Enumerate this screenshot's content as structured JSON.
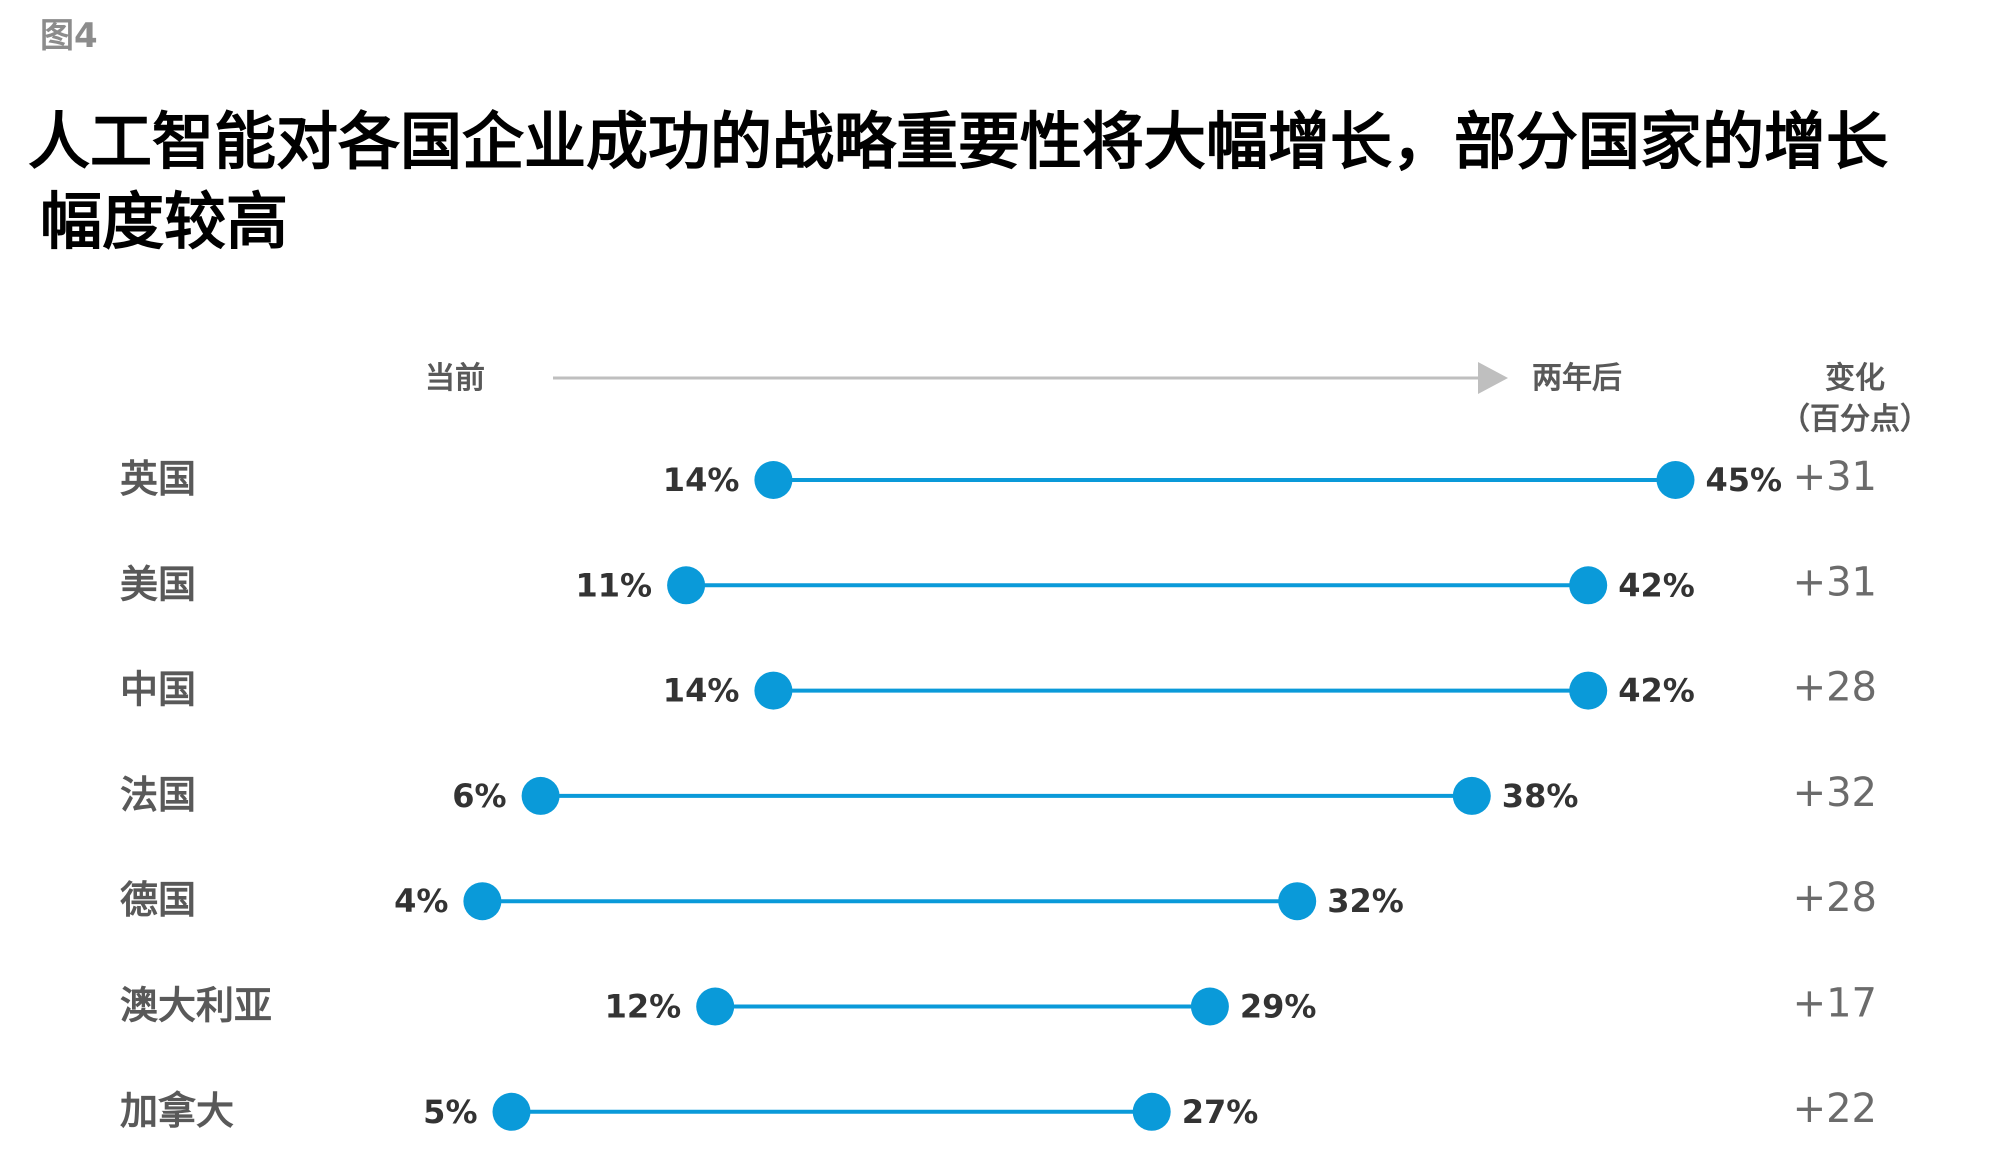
{
  "figure_label": "图4",
  "title_line1": "人工智能对各国企业成功的战略重要性将大幅增长，部分国家的增长",
  "title_line2": "幅度较高",
  "colors": {
    "accent": "#0a9ad9",
    "arrow": "#bfbfbf",
    "label_gray": "#595959",
    "change_gray": "#6b6b6b"
  },
  "chart_data": {
    "type": "dumbbell",
    "header_left": "当前",
    "header_right": "两年后",
    "change_header_line1": "变化",
    "change_header_line2": "（百分点）",
    "value_suffix": "%",
    "rows": [
      {
        "country": "英国",
        "current": 14,
        "future": 45,
        "change": "+31"
      },
      {
        "country": "美国",
        "current": 11,
        "future": 42,
        "change": "+31"
      },
      {
        "country": "中国",
        "current": 14,
        "future": 42,
        "change": "+28"
      },
      {
        "country": "法国",
        "current": 6,
        "future": 38,
        "change": "+32"
      },
      {
        "country": "德国",
        "current": 4,
        "future": 32,
        "change": "+28"
      },
      {
        "country": "澳大利亚",
        "current": 12,
        "future": 29,
        "change": "+17"
      },
      {
        "country": "加拿大",
        "current": 5,
        "future": 27,
        "change": "+22"
      }
    ]
  }
}
